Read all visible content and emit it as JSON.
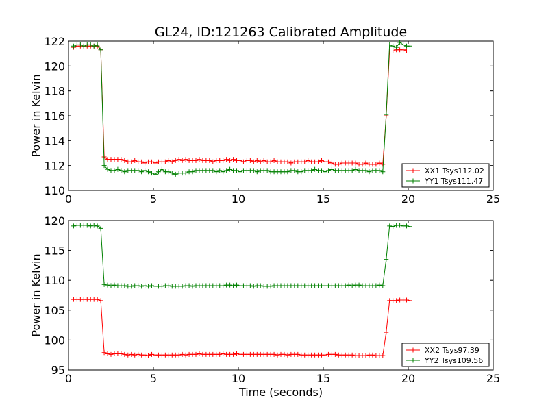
{
  "figure": {
    "title": "GL24, ID:121263 Calibrated Amplitude"
  },
  "chart_data": [
    {
      "type": "line",
      "title": "GL24, ID:121263 Calibrated Amplitude",
      "xlabel": "",
      "ylabel": "Power in Kelvin",
      "xlim": [
        0,
        25
      ],
      "ylim": [
        110,
        122
      ],
      "xticks": [
        "0",
        "5",
        "10",
        "15",
        "20",
        "25"
      ],
      "yticks": [
        "110",
        "112",
        "114",
        "116",
        "118",
        "120",
        "122"
      ],
      "grid": false,
      "legend_position": "lower-right",
      "x": [
        0.3,
        0.5,
        0.7,
        0.9,
        1.1,
        1.3,
        1.5,
        1.7,
        1.9,
        2.1,
        2.3,
        2.5,
        2.7,
        2.9,
        3.1,
        3.3,
        3.5,
        3.7,
        3.9,
        4.1,
        4.3,
        4.5,
        4.7,
        4.9,
        5.1,
        5.3,
        5.5,
        5.7,
        5.9,
        6.1,
        6.3,
        6.5,
        6.7,
        6.9,
        7.1,
        7.3,
        7.5,
        7.7,
        7.9,
        8.1,
        8.3,
        8.5,
        8.7,
        8.9,
        9.1,
        9.3,
        9.5,
        9.7,
        9.9,
        10.1,
        10.3,
        10.5,
        10.7,
        10.9,
        11.1,
        11.3,
        11.5,
        11.7,
        11.9,
        12.1,
        12.3,
        12.5,
        12.7,
        12.9,
        13.1,
        13.3,
        13.5,
        13.7,
        13.9,
        14.1,
        14.3,
        14.5,
        14.7,
        14.9,
        15.1,
        15.3,
        15.5,
        15.7,
        15.9,
        16.1,
        16.3,
        16.5,
        16.7,
        16.9,
        17.1,
        17.3,
        17.5,
        17.7,
        17.9,
        18.1,
        18.3,
        18.5,
        18.7,
        18.9,
        19.1,
        19.3,
        19.5,
        19.7,
        19.9,
        20.1
      ],
      "series": [
        {
          "name": "XX1 Tsys112.02",
          "color": "#ff0000",
          "values": [
            121.5,
            121.6,
            121.6,
            121.6,
            121.6,
            121.6,
            121.6,
            121.6,
            121.3,
            112.7,
            112.5,
            112.5,
            112.5,
            112.5,
            112.5,
            112.4,
            112.3,
            112.3,
            112.4,
            112.3,
            112.3,
            112.2,
            112.3,
            112.3,
            112.2,
            112.3,
            112.3,
            112.3,
            112.4,
            112.3,
            112.4,
            112.5,
            112.4,
            112.5,
            112.4,
            112.4,
            112.4,
            112.5,
            112.4,
            112.4,
            112.4,
            112.3,
            112.4,
            112.4,
            112.4,
            112.5,
            112.4,
            112.5,
            112.4,
            112.4,
            112.3,
            112.4,
            112.4,
            112.3,
            112.4,
            112.3,
            112.4,
            112.3,
            112.3,
            112.4,
            112.3,
            112.3,
            112.3,
            112.3,
            112.2,
            112.3,
            112.3,
            112.3,
            112.3,
            112.4,
            112.3,
            112.3,
            112.3,
            112.4,
            112.3,
            112.3,
            112.2,
            112.1,
            112.1,
            112.2,
            112.2,
            112.2,
            112.2,
            112.2,
            112.1,
            112.1,
            112.2,
            112.1,
            112.1,
            112.1,
            112.2,
            112.1,
            116.0,
            121.2,
            121.2,
            121.3,
            121.3,
            121.3,
            121.2,
            121.2
          ]
        },
        {
          "name": "YY1 Tsys111.47",
          "color": "#008000",
          "values": [
            121.6,
            121.7,
            121.7,
            121.6,
            121.7,
            121.7,
            121.6,
            121.7,
            121.3,
            112.0,
            111.7,
            111.6,
            111.6,
            111.7,
            111.6,
            111.5,
            111.6,
            111.6,
            111.6,
            111.6,
            111.5,
            111.6,
            111.5,
            111.4,
            111.3,
            111.5,
            111.7,
            111.5,
            111.5,
            111.4,
            111.3,
            111.4,
            111.4,
            111.4,
            111.5,
            111.5,
            111.6,
            111.6,
            111.6,
            111.6,
            111.6,
            111.6,
            111.5,
            111.6,
            111.5,
            111.6,
            111.7,
            111.6,
            111.6,
            111.5,
            111.6,
            111.6,
            111.6,
            111.6,
            111.5,
            111.6,
            111.6,
            111.6,
            111.5,
            111.5,
            111.5,
            111.5,
            111.5,
            111.5,
            111.6,
            111.6,
            111.5,
            111.5,
            111.6,
            111.6,
            111.6,
            111.7,
            111.6,
            111.6,
            111.5,
            111.6,
            111.7,
            111.6,
            111.6,
            111.6,
            111.6,
            111.6,
            111.6,
            111.7,
            111.6,
            111.6,
            111.6,
            111.5,
            111.6,
            111.6,
            111.6,
            111.5,
            116.1,
            121.7,
            121.6,
            121.5,
            121.9,
            121.7,
            121.6,
            121.6
          ]
        }
      ]
    },
    {
      "type": "line",
      "title": "",
      "xlabel": "Time (seconds)",
      "ylabel": "Power in Kelvin",
      "xlim": [
        0,
        25
      ],
      "ylim": [
        95,
        120
      ],
      "xticks": [
        "0",
        "5",
        "10",
        "15",
        "20",
        "25"
      ],
      "yticks": [
        "95",
        "100",
        "105",
        "110",
        "115",
        "120"
      ],
      "grid": false,
      "legend_position": "lower-right",
      "x": [
        0.3,
        0.5,
        0.7,
        0.9,
        1.1,
        1.3,
        1.5,
        1.7,
        1.9,
        2.1,
        2.3,
        2.5,
        2.7,
        2.9,
        3.1,
        3.3,
        3.5,
        3.7,
        3.9,
        4.1,
        4.3,
        4.5,
        4.7,
        4.9,
        5.1,
        5.3,
        5.5,
        5.7,
        5.9,
        6.1,
        6.3,
        6.5,
        6.7,
        6.9,
        7.1,
        7.3,
        7.5,
        7.7,
        7.9,
        8.1,
        8.3,
        8.5,
        8.7,
        8.9,
        9.1,
        9.3,
        9.5,
        9.7,
        9.9,
        10.1,
        10.3,
        10.5,
        10.7,
        10.9,
        11.1,
        11.3,
        11.5,
        11.7,
        11.9,
        12.1,
        12.3,
        12.5,
        12.7,
        12.9,
        13.1,
        13.3,
        13.5,
        13.7,
        13.9,
        14.1,
        14.3,
        14.5,
        14.7,
        14.9,
        15.1,
        15.3,
        15.5,
        15.7,
        15.9,
        16.1,
        16.3,
        16.5,
        16.7,
        16.9,
        17.1,
        17.3,
        17.5,
        17.7,
        17.9,
        18.1,
        18.3,
        18.5,
        18.7,
        18.9,
        19.1,
        19.3,
        19.5,
        19.7,
        19.9,
        20.1
      ],
      "series": [
        {
          "name": "XX2 Tsys97.39",
          "color": "#ff0000",
          "values": [
            106.8,
            106.8,
            106.8,
            106.8,
            106.8,
            106.8,
            106.8,
            106.8,
            106.6,
            97.9,
            97.7,
            97.6,
            97.7,
            97.7,
            97.7,
            97.6,
            97.5,
            97.6,
            97.5,
            97.6,
            97.5,
            97.5,
            97.4,
            97.6,
            97.5,
            97.5,
            97.5,
            97.5,
            97.5,
            97.5,
            97.5,
            97.5,
            97.6,
            97.5,
            97.6,
            97.6,
            97.6,
            97.7,
            97.6,
            97.6,
            97.6,
            97.6,
            97.6,
            97.6,
            97.7,
            97.6,
            97.6,
            97.6,
            97.7,
            97.6,
            97.6,
            97.6,
            97.6,
            97.6,
            97.6,
            97.6,
            97.6,
            97.6,
            97.6,
            97.6,
            97.5,
            97.6,
            97.6,
            97.5,
            97.6,
            97.6,
            97.6,
            97.5,
            97.5,
            97.5,
            97.5,
            97.5,
            97.5,
            97.5,
            97.5,
            97.6,
            97.6,
            97.6,
            97.5,
            97.5,
            97.5,
            97.5,
            97.5,
            97.4,
            97.4,
            97.4,
            97.4,
            97.5,
            97.5,
            97.4,
            97.4,
            97.4,
            101.3,
            106.6,
            106.6,
            106.6,
            106.7,
            106.7,
            106.7,
            106.6
          ]
        },
        {
          "name": "YY2 Tsys109.56",
          "color": "#008000",
          "values": [
            119.1,
            119.2,
            119.2,
            119.2,
            119.2,
            119.1,
            119.2,
            119.1,
            118.7,
            109.3,
            109.2,
            109.1,
            109.2,
            109.1,
            109.1,
            109.1,
            109.0,
            109.0,
            109.1,
            109.1,
            109.0,
            109.1,
            109.0,
            109.1,
            109.0,
            109.0,
            109.0,
            109.1,
            109.1,
            109.0,
            109.0,
            109.0,
            109.0,
            109.1,
            109.1,
            109.0,
            109.1,
            109.1,
            109.1,
            109.1,
            109.1,
            109.1,
            109.1,
            109.1,
            109.1,
            109.2,
            109.2,
            109.1,
            109.2,
            109.1,
            109.1,
            109.1,
            109.1,
            109.0,
            109.1,
            109.1,
            109.0,
            109.0,
            109.0,
            109.1,
            109.1,
            109.1,
            109.1,
            109.1,
            109.1,
            109.1,
            109.1,
            109.1,
            109.1,
            109.1,
            109.1,
            109.1,
            109.1,
            109.1,
            109.1,
            109.1,
            109.1,
            109.1,
            109.1,
            109.1,
            109.1,
            109.2,
            109.1,
            109.2,
            109.2,
            109.1,
            109.1,
            109.1,
            109.1,
            109.1,
            109.2,
            109.1,
            113.5,
            119.1,
            119.0,
            119.2,
            119.2,
            119.1,
            119.1,
            119.0
          ]
        }
      ]
    }
  ]
}
